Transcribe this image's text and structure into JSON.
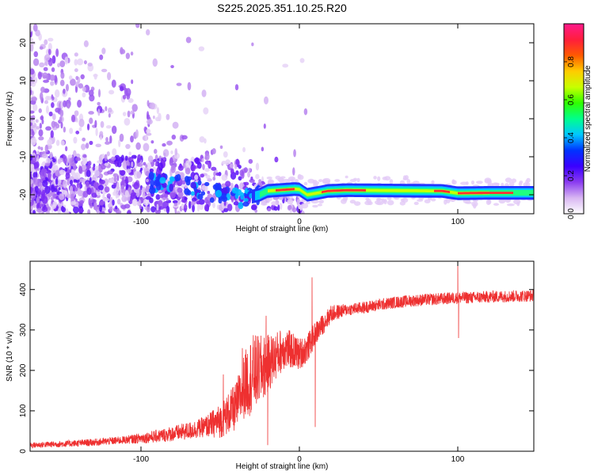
{
  "chart_data": [
    {
      "type": "heatmap",
      "title": "S225.2025.351.10.25.R20",
      "xlabel": "Height of straight line (km)",
      "ylabel": "Frequency (Hz)",
      "xlim": [
        -170,
        148
      ],
      "ylim": [
        -25,
        25
      ],
      "xticks": [
        -100,
        0,
        100
      ],
      "yticks": [
        -20,
        -10,
        0,
        10,
        20
      ],
      "xtick_labels": [
        "-100",
        "0",
        "100"
      ],
      "ytick_labels": [
        "-20",
        "-10",
        "0",
        "10",
        "20"
      ],
      "colorbar": {
        "label": "Normalized spectral amplitude",
        "range": [
          0,
          1
        ],
        "ticks": [
          0.0,
          0.2,
          0.4,
          0.6,
          0.8
        ],
        "tick_labels": [
          "0.0",
          "0.2",
          "0.4",
          "0.6",
          "0.8"
        ],
        "colors": [
          "#ffffff",
          "#d8b6f2",
          "#8a3cf0",
          "#3a00ff",
          "#0033ff",
          "#00c8ff",
          "#00ff8c",
          "#30ff00",
          "#c8ff00",
          "#ffcc00",
          "#ff5a00",
          "#ff1e3c",
          "#ff1a8c"
        ]
      },
      "ridge": {
        "description": "dominant spectral ridge",
        "points": [
          [
            -75,
            -17
          ],
          [
            -60,
            -19
          ],
          [
            -50,
            -20
          ],
          [
            -35,
            -21
          ],
          [
            -25,
            -20
          ],
          [
            -20,
            -19
          ],
          [
            -10,
            -18.7
          ],
          [
            -3,
            -18.5
          ],
          [
            0,
            -18.6
          ],
          [
            5,
            -20
          ],
          [
            12,
            -19.5
          ],
          [
            18,
            -19
          ],
          [
            30,
            -18.8
          ],
          [
            60,
            -18.9
          ],
          [
            90,
            -19
          ],
          [
            100,
            -19.6
          ],
          [
            120,
            -19.5
          ],
          [
            148,
            -19.5
          ]
        ]
      }
    },
    {
      "type": "line",
      "xlabel": "Height of straight line (km)",
      "ylabel": "SNR (10 * v/v)",
      "xlim": [
        -170,
        148
      ],
      "ylim": [
        0,
        470
      ],
      "xticks": [
        -100,
        0,
        100
      ],
      "yticks": [
        0,
        100,
        200,
        300,
        400
      ],
      "xtick_labels": [
        "-100",
        "0",
        "100"
      ],
      "ytick_labels": [
        "0",
        "100",
        "200",
        "300",
        "400"
      ],
      "series": [
        {
          "name": "SNR",
          "color": "#ee3030",
          "envelope": {
            "x": [
              -170,
              -150,
              -130,
              -110,
              -90,
              -70,
              -60,
              -50,
              -40,
              -35,
              -30,
              -25,
              -20,
              -15,
              -10,
              -5,
              0,
              5,
              10,
              15,
              20,
              30,
              40,
              50,
              60,
              70,
              80,
              90,
              100,
              110,
              120,
              130,
              148
            ],
            "y": [
              15,
              18,
              22,
              28,
              37,
              50,
              60,
              75,
              110,
              160,
              190,
              200,
              215,
              235,
              255,
              250,
              240,
              255,
              290,
              315,
              340,
              350,
              355,
              362,
              368,
              372,
              375,
              377,
              380,
              380,
              382,
              383,
              385
            ]
          },
          "noise": [
            [
              -170,
              7
            ],
            [
              -110,
              10
            ],
            [
              -60,
              25
            ],
            [
              -40,
              60
            ],
            [
              -30,
              100
            ],
            [
              -15,
              60
            ],
            [
              0,
              40
            ],
            [
              15,
              25
            ],
            [
              30,
              15
            ],
            [
              100,
              15
            ],
            [
              148,
              15
            ]
          ],
          "spikes": [
            [
              -21,
              335
            ],
            [
              -20,
              15
            ],
            [
              8,
              430
            ],
            [
              10,
              60
            ],
            [
              100,
              470
            ],
            [
              100.5,
              280
            ],
            [
              -48,
              190
            ],
            [
              -36,
              255
            ]
          ]
        }
      ]
    }
  ]
}
